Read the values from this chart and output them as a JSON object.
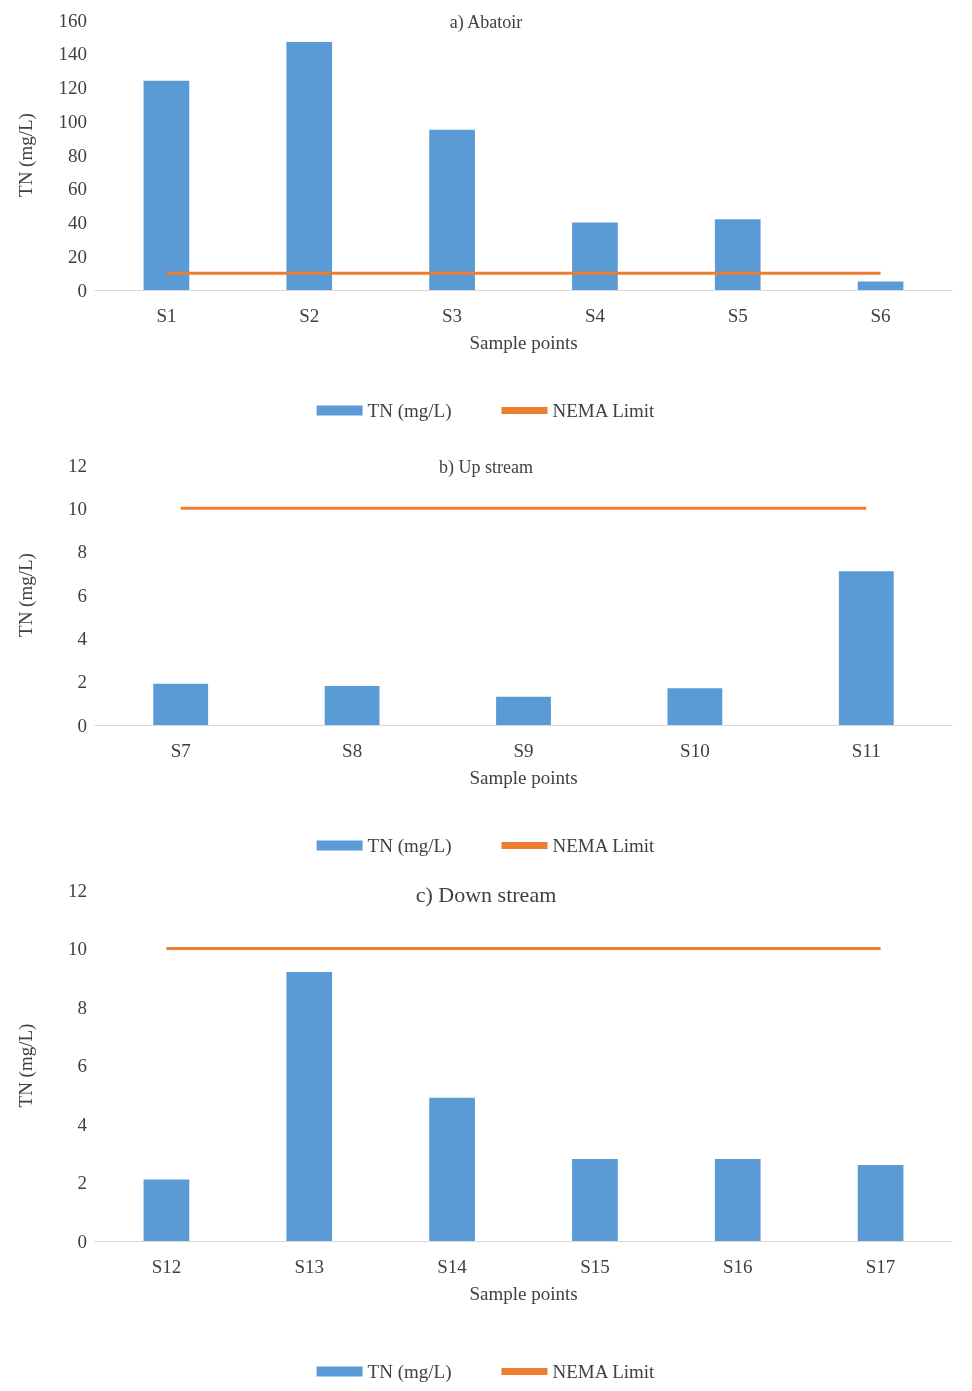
{
  "chart_data": [
    {
      "type": "bar",
      "title": "a) Abatoir",
      "xlabel": "Sample points",
      "ylabel": "TN (mg/L)",
      "categories": [
        "S1",
        "S2",
        "S3",
        "S4",
        "S5",
        "S6"
      ],
      "ylim": [
        0,
        160
      ],
      "yticks": [
        0,
        20,
        40,
        60,
        80,
        100,
        120,
        140,
        160
      ],
      "legend": "bottom",
      "marker": "none",
      "line_style": "solid",
      "series": [
        {
          "name": "TN (mg/L)",
          "color": "#5b9bd5",
          "values": [
            124,
            147,
            95,
            40,
            42,
            5
          ]
        },
        {
          "name": "NEMA Limit",
          "type": "line",
          "color": "#ed7d31",
          "values": [
            10,
            10,
            10,
            10,
            10,
            10
          ]
        }
      ]
    },
    {
      "type": "bar",
      "title": "b) Up stream",
      "xlabel": "Sample points",
      "ylabel": "TN (mg/L)",
      "categories": [
        "S7",
        "S8",
        "S9",
        "S10",
        "S11"
      ],
      "ylim": [
        0,
        12
      ],
      "yticks": [
        0,
        2,
        4,
        6,
        8,
        10,
        12
      ],
      "legend": "bottom",
      "marker": "none",
      "line_style": "solid",
      "series": [
        {
          "name": "TN (mg/L)",
          "color": "#5b9bd5",
          "values": [
            1.9,
            1.8,
            1.3,
            1.7,
            7.1
          ]
        },
        {
          "name": "NEMA Limit",
          "type": "line",
          "color": "#ed7d31",
          "values": [
            10,
            10,
            10,
            10,
            10
          ]
        }
      ]
    },
    {
      "type": "bar",
      "title": "c) Down stream",
      "xlabel": "Sample points",
      "ylabel": "TN (mg/L)",
      "categories": [
        "S12",
        "S13",
        "S14",
        "S15",
        "S16",
        "S17"
      ],
      "ylim": [
        0,
        12
      ],
      "yticks": [
        0,
        2,
        4,
        6,
        8,
        10,
        12
      ],
      "legend": "bottom",
      "marker": "none",
      "line_style": "solid",
      "series": [
        {
          "name": "TN (mg/L)",
          "color": "#5b9bd5",
          "values": [
            2.1,
            9.2,
            4.9,
            2.8,
            2.8,
            2.6
          ]
        },
        {
          "name": "NEMA Limit",
          "type": "line",
          "color": "#ed7d31",
          "values": [
            10,
            10,
            10,
            10,
            10,
            10
          ]
        }
      ]
    }
  ]
}
